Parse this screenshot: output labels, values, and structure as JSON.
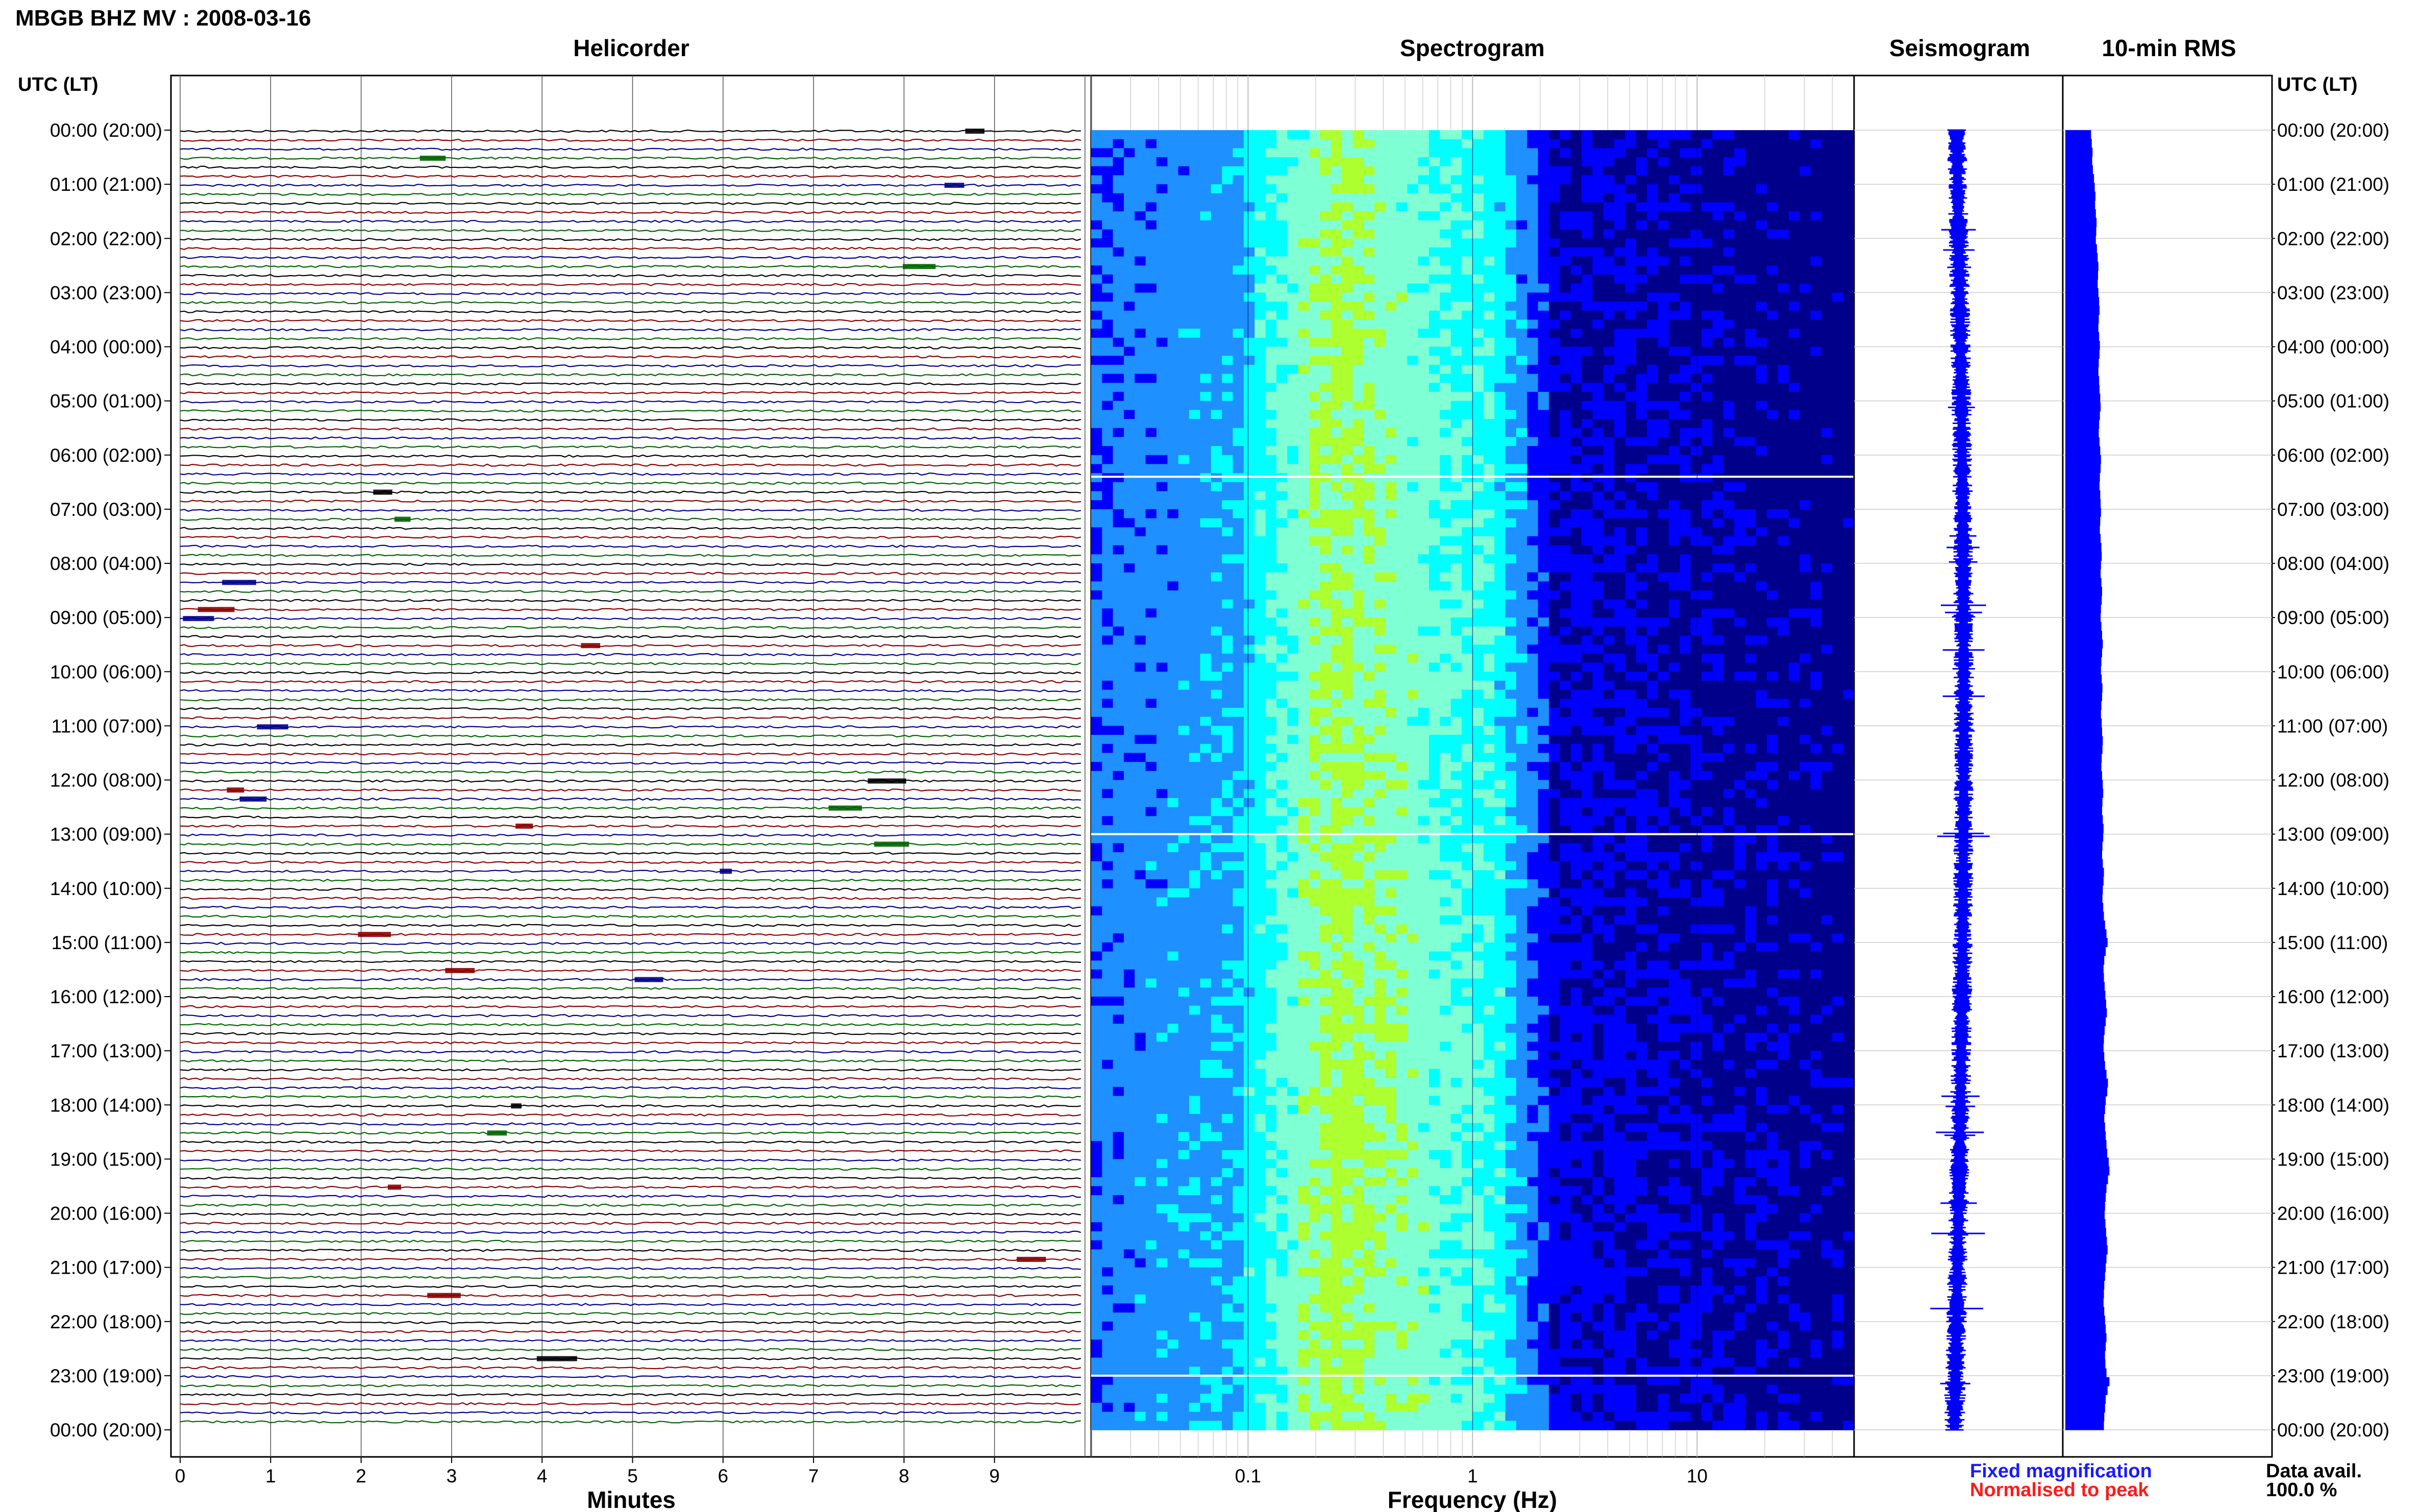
{
  "page_title": "MBGB BHZ MV : 2008-03-16",
  "panels": {
    "helicorder": "Helicorder",
    "spectrogram": "Spectrogram",
    "seismogram": "Seismogram",
    "rms": "10-min RMS"
  },
  "time_axis": {
    "header_left": "UTC (LT)",
    "header_right": "UTC (LT)",
    "labels": [
      "00:00 (20:00)",
      "01:00 (21:00)",
      "02:00 (22:00)",
      "03:00 (23:00)",
      "04:00 (00:00)",
      "05:00 (01:00)",
      "06:00 (02:00)",
      "07:00 (03:00)",
      "08:00 (04:00)",
      "09:00 (05:00)",
      "10:00 (06:00)",
      "11:00 (07:00)",
      "12:00 (08:00)",
      "13:00 (09:00)",
      "14:00 (10:00)",
      "15:00 (11:00)",
      "16:00 (12:00)",
      "17:00 (13:00)",
      "18:00 (14:00)",
      "19:00 (15:00)",
      "20:00 (16:00)",
      "21:00 (17:00)",
      "22:00 (18:00)",
      "23:00 (19:00)",
      "00:00 (20:00)"
    ]
  },
  "axes": {
    "helicorder_xlabel": "Minutes",
    "helicorder_ticks": [
      "0",
      "1",
      "2",
      "3",
      "4",
      "5",
      "6",
      "7",
      "8",
      "9"
    ],
    "spectrogram_xlabel": "Frequency (Hz)",
    "spectrogram_ticks": [
      "0.1",
      "1",
      "10"
    ]
  },
  "legend": {
    "fixed": "Fixed magnification",
    "normalised": "Normalised to peak",
    "fixed_color": "#1a1aff",
    "normalised_color": "#ff1a1a"
  },
  "data_avail": {
    "label": "Data avail.",
    "value": "100.0 %"
  },
  "chart_data": [
    {
      "type": "line",
      "name": "helicorder",
      "x_range_minutes": [
        0,
        10
      ],
      "traces_per_hour": 6,
      "hours": 24,
      "trace_colors": [
        "#000000",
        "#8b0000",
        "#00008b",
        "#006400"
      ]
    },
    {
      "type": "heatmap",
      "name": "spectrogram",
      "x_scale": "log",
      "x_range_hz": [
        0.02,
        50
      ],
      "colormap": [
        "#00008b",
        "#0000ff",
        "#1e90ff",
        "#00ffff",
        "#7fffd4",
        "#adff2f"
      ]
    },
    {
      "type": "line",
      "name": "seismogram",
      "color": "#0000ff"
    },
    {
      "type": "bar",
      "name": "10-min RMS",
      "color": "#0000ff",
      "values": [
        0.7,
        0.72,
        0.74,
        0.73,
        0.75,
        0.78,
        0.8,
        0.82,
        0.81,
        0.83,
        0.85,
        0.84,
        0.83,
        0.86,
        0.88,
        0.9,
        0.89,
        0.88,
        0.9,
        0.92,
        0.93,
        0.91,
        0.9,
        0.92,
        0.94,
        0.93,
        0.91,
        0.9,
        0.92,
        0.93,
        0.95,
        0.96,
        0.94,
        0.92,
        0.91,
        0.93,
        0.95,
        0.97,
        0.96,
        0.94,
        0.93,
        0.95,
        0.96,
        0.97,
        0.95,
        0.94,
        0.96,
        0.98,
        0.99,
        0.97,
        0.96,
        0.98,
        1.0,
        0.99,
        0.97,
        0.96,
        0.98,
        1.0,
        1.02,
        1.0,
        0.98,
        0.97,
        0.99,
        1.01,
        1.0,
        0.98,
        0.97,
        0.99,
        1.0,
        1.02,
        1.01,
        0.99,
        0.98,
        1.0,
        1.02,
        1.03,
        1.01,
        1.0,
        1.02,
        1.04,
        1.03,
        1.01,
        1.0,
        1.02,
        1.05,
        1.04,
        1.02,
        1.01,
        1.03,
        1.05,
        1.08,
        1.12,
        1.15,
        1.1,
        1.06,
        1.04,
        1.05,
        1.07,
        1.09,
        1.11,
        1.13,
        1.1,
        1.07,
        1.05,
        1.04,
        1.06,
        1.08,
        1.12,
        1.16,
        1.14,
        1.1,
        1.08,
        1.06,
        1.08,
        1.1,
        1.12,
        1.14,
        1.18,
        1.2,
        1.16,
        1.12,
        1.1,
        1.08,
        1.07,
        1.09,
        1.11,
        1.13,
        1.15,
        1.12,
        1.1,
        1.08,
        1.06,
        1.05,
        1.04,
        1.06,
        1.08,
        1.1,
        1.12,
        1.1,
        1.08,
        1.09,
        1.12,
        1.2,
        1.15,
        1.1,
        1.08,
        1.06,
        1.05
      ]
    }
  ]
}
